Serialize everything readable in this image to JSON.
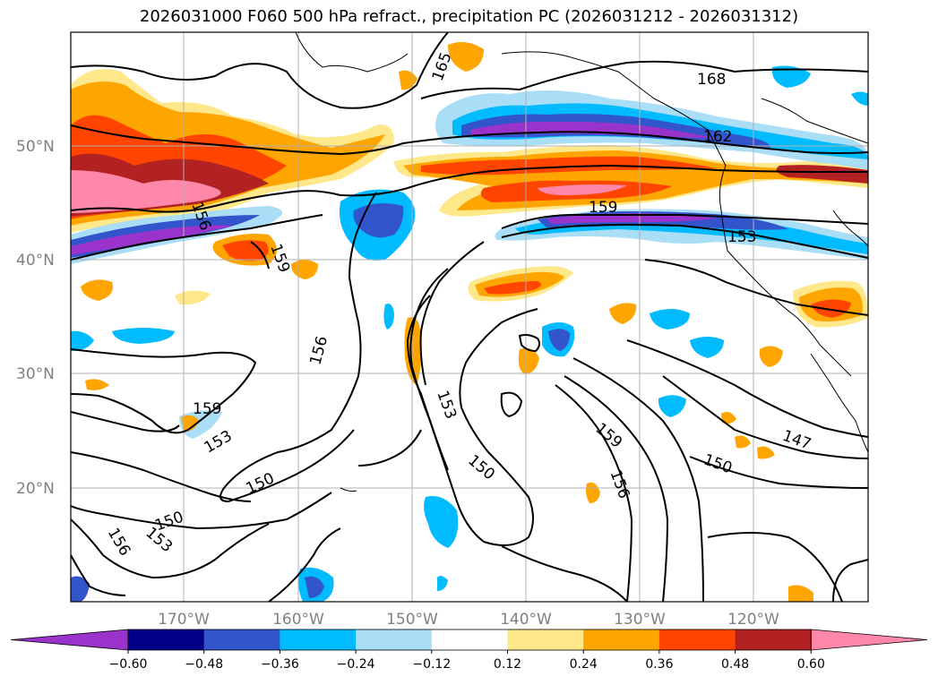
{
  "title": "2026031000 F060 500 hPa refract., precipitation PC (2026031212 - 2026031312)",
  "map": {
    "lat_labels": [
      "50°N",
      "40°N",
      "30°N",
      "20°N"
    ],
    "lon_labels": [
      "170°W",
      "160°W",
      "150°W",
      "140°W",
      "130°W",
      "120°W"
    ],
    "contour_labels": [
      "165",
      "168",
      "162",
      "159",
      "156",
      "159",
      "153",
      "156",
      "159",
      "153",
      "150",
      "153",
      "150",
      "159",
      "156",
      "150",
      "147",
      "150",
      "153",
      "156"
    ]
  },
  "colorbar": {
    "colors": [
      "#9933cc",
      "#000088",
      "#3355cc",
      "#00bbff",
      "#aaddf6",
      "#ffffff",
      "#ffe88a",
      "#ffa500",
      "#ff4500",
      "#b22222",
      "#ff88aa"
    ],
    "tick_labels": [
      "−0.60",
      "−0.48",
      "−0.36",
      "−0.24",
      "−0.12",
      "0.12",
      "0.24",
      "0.36",
      "0.48",
      "0.60"
    ]
  }
}
